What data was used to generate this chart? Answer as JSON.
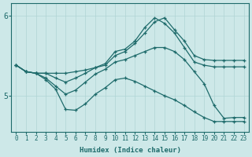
{
  "bg_color": "#cde8e8",
  "line_color": "#1e6b6b",
  "xlabel": "Humidex (Indice chaleur)",
  "xlim": [
    -0.5,
    23.5
  ],
  "ylim": [
    4.55,
    6.15
  ],
  "yticks": [
    5,
    6
  ],
  "xticks": [
    0,
    1,
    2,
    3,
    4,
    5,
    6,
    7,
    8,
    9,
    10,
    11,
    12,
    13,
    14,
    15,
    16,
    17,
    18,
    19,
    20,
    21,
    22,
    23
  ],
  "series": [
    {
      "x": [
        0,
        1,
        2,
        3,
        4,
        5,
        6,
        7,
        8,
        9,
        10,
        11,
        12,
        13,
        14,
        15,
        16,
        17,
        18,
        19,
        20,
        21,
        22,
        23
      ],
      "y": [
        5.38,
        5.3,
        5.28,
        5.28,
        5.28,
        5.28,
        5.3,
        5.32,
        5.35,
        5.38,
        5.5,
        5.55,
        5.65,
        5.78,
        5.92,
        5.97,
        5.82,
        5.68,
        5.5,
        5.45,
        5.44,
        5.44,
        5.44,
        5.44
      ]
    },
    {
      "x": [
        0,
        1,
        2,
        3,
        4,
        5,
        6,
        7,
        8,
        9,
        10,
        11,
        12,
        13,
        14,
        15,
        16,
        17,
        18,
        19,
        20,
        21,
        22,
        23
      ],
      "y": [
        5.38,
        5.3,
        5.28,
        5.28,
        5.22,
        5.17,
        5.22,
        5.28,
        5.35,
        5.4,
        5.55,
        5.58,
        5.68,
        5.85,
        5.97,
        5.9,
        5.78,
        5.6,
        5.42,
        5.38,
        5.36,
        5.36,
        5.36,
        5.36
      ]
    },
    {
      "x": [
        0,
        1,
        2,
        3,
        4,
        5,
        6,
        7,
        8,
        9,
        10,
        11,
        12,
        13,
        14,
        15,
        16,
        17,
        18,
        19,
        20,
        21,
        22,
        23
      ],
      "y": [
        5.38,
        5.3,
        5.28,
        5.22,
        5.12,
        5.02,
        5.07,
        5.17,
        5.27,
        5.33,
        5.42,
        5.45,
        5.5,
        5.55,
        5.6,
        5.6,
        5.55,
        5.45,
        5.3,
        5.15,
        4.88,
        4.72,
        4.73,
        4.73
      ]
    },
    {
      "x": [
        0,
        1,
        2,
        3,
        4,
        5,
        6,
        7,
        8,
        9,
        10,
        11,
        12,
        13,
        14,
        15,
        16,
        17,
        18,
        19,
        20,
        21,
        22,
        23
      ],
      "y": [
        5.38,
        5.3,
        5.28,
        5.2,
        5.08,
        4.83,
        4.82,
        4.9,
        5.02,
        5.1,
        5.2,
        5.22,
        5.18,
        5.12,
        5.06,
        5.0,
        4.95,
        4.88,
        4.8,
        4.73,
        4.68,
        4.68,
        4.68,
        4.68
      ]
    }
  ]
}
